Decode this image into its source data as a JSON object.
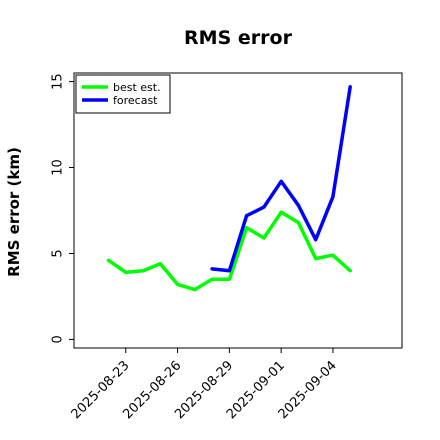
{
  "chart_data": {
    "type": "line",
    "title": "RMS error",
    "xlabel": "",
    "ylabel": "RMS error (km)",
    "x_ticks": [
      "2025-08-23",
      "2025-08-26",
      "2025-08-29",
      "2025-09-01",
      "2025-09-04"
    ],
    "xlim": [
      "2025-08-20",
      "2025-09-08"
    ],
    "ylim": [
      -0.5,
      15.5
    ],
    "y_ticks": [
      0,
      5,
      10,
      15
    ],
    "grid": false,
    "legend_position": "top-left",
    "series": [
      {
        "name": "best est.",
        "color": "#00ff00",
        "x": [
          "2025-08-22",
          "2025-08-23",
          "2025-08-24",
          "2025-08-25",
          "2025-08-26",
          "2025-08-27",
          "2025-08-28",
          "2025-08-29",
          "2025-08-30",
          "2025-08-31",
          "2025-09-01",
          "2025-09-02",
          "2025-09-03",
          "2025-09-04",
          "2025-09-05"
        ],
        "values": [
          4.6,
          3.9,
          4.0,
          4.4,
          3.2,
          2.9,
          3.5,
          3.5,
          6.5,
          5.9,
          7.4,
          6.8,
          4.7,
          4.9,
          4.0
        ]
      },
      {
        "name": "forecast",
        "color": "#0000ff",
        "x": [
          "2025-08-28",
          "2025-08-29",
          "2025-08-30",
          "2025-08-31",
          "2025-09-01",
          "2025-09-02",
          "2025-09-03",
          "2025-09-04",
          "2025-09-05"
        ],
        "values": [
          4.1,
          4.0,
          7.2,
          7.7,
          9.2,
          7.8,
          5.8,
          8.3,
          14.7
        ]
      }
    ]
  }
}
